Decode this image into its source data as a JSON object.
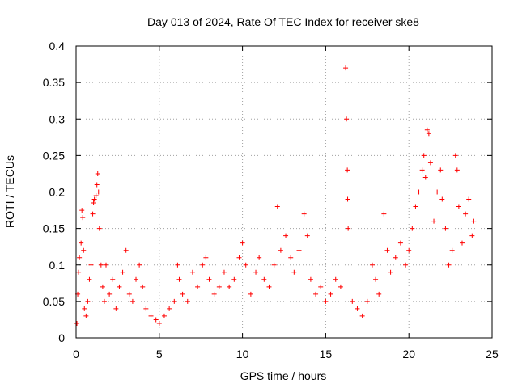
{
  "chart_data": {
    "type": "scatter",
    "title": "Day 013 of 2024, Rate Of TEC Index for receiver ske8",
    "xlabel": "GPS time / hours",
    "ylabel": "ROTI / TECUs",
    "xlim": [
      0,
      25
    ],
    "ylim": [
      0,
      0.4
    ],
    "x_ticks": [
      0,
      5,
      10,
      15,
      20,
      25
    ],
    "y_ticks": [
      0,
      0.05,
      0.1,
      0.15,
      0.2,
      0.25,
      0.3,
      0.35,
      0.4
    ],
    "x_tick_labels": [
      "0",
      "5",
      "10",
      "15",
      "20",
      "25"
    ],
    "y_tick_labels": [
      "0",
      "0.05",
      "0.1",
      "0.15",
      "0.2",
      "0.25",
      "0.3",
      "0.35",
      "0.4"
    ],
    "grid": true,
    "marker": "plus",
    "series_color": "#ff0000",
    "series": [
      {
        "name": "ROTI",
        "points": [
          [
            0.05,
            0.02
          ],
          [
            0.1,
            0.06
          ],
          [
            0.15,
            0.09
          ],
          [
            0.2,
            0.11
          ],
          [
            0.3,
            0.13
          ],
          [
            0.35,
            0.175
          ],
          [
            0.4,
            0.165
          ],
          [
            0.45,
            0.12
          ],
          [
            0.5,
            0.04
          ],
          [
            0.6,
            0.03
          ],
          [
            0.7,
            0.05
          ],
          [
            0.8,
            0.08
          ],
          [
            0.9,
            0.1
          ],
          [
            1.0,
            0.17
          ],
          [
            1.05,
            0.185
          ],
          [
            1.1,
            0.19
          ],
          [
            1.2,
            0.195
          ],
          [
            1.25,
            0.21
          ],
          [
            1.3,
            0.225
          ],
          [
            1.35,
            0.2
          ],
          [
            1.4,
            0.15
          ],
          [
            1.5,
            0.1
          ],
          [
            1.6,
            0.07
          ],
          [
            1.7,
            0.05
          ],
          [
            1.8,
            0.1
          ],
          [
            2.0,
            0.06
          ],
          [
            2.2,
            0.08
          ],
          [
            2.4,
            0.04
          ],
          [
            2.6,
            0.07
          ],
          [
            2.8,
            0.09
          ],
          [
            3.0,
            0.12
          ],
          [
            3.2,
            0.06
          ],
          [
            3.4,
            0.05
          ],
          [
            3.6,
            0.08
          ],
          [
            3.8,
            0.1
          ],
          [
            4.0,
            0.07
          ],
          [
            4.2,
            0.04
          ],
          [
            4.5,
            0.03
          ],
          [
            4.8,
            0.025
          ],
          [
            5.0,
            0.02
          ],
          [
            5.3,
            0.03
          ],
          [
            5.6,
            0.04
          ],
          [
            5.9,
            0.05
          ],
          [
            6.1,
            0.1
          ],
          [
            6.2,
            0.08
          ],
          [
            6.4,
            0.06
          ],
          [
            6.7,
            0.05
          ],
          [
            7.0,
            0.09
          ],
          [
            7.3,
            0.07
          ],
          [
            7.6,
            0.1
          ],
          [
            7.8,
            0.11
          ],
          [
            8.0,
            0.08
          ],
          [
            8.3,
            0.06
          ],
          [
            8.6,
            0.07
          ],
          [
            8.9,
            0.09
          ],
          [
            9.2,
            0.07
          ],
          [
            9.5,
            0.08
          ],
          [
            9.8,
            0.11
          ],
          [
            10.0,
            0.13
          ],
          [
            10.2,
            0.1
          ],
          [
            10.5,
            0.06
          ],
          [
            10.8,
            0.09
          ],
          [
            11.0,
            0.11
          ],
          [
            11.3,
            0.08
          ],
          [
            11.6,
            0.07
          ],
          [
            11.9,
            0.1
          ],
          [
            12.1,
            0.18
          ],
          [
            12.3,
            0.12
          ],
          [
            12.6,
            0.14
          ],
          [
            12.9,
            0.11
          ],
          [
            13.1,
            0.09
          ],
          [
            13.4,
            0.12
          ],
          [
            13.7,
            0.17
          ],
          [
            13.9,
            0.14
          ],
          [
            14.1,
            0.08
          ],
          [
            14.4,
            0.06
          ],
          [
            14.7,
            0.07
          ],
          [
            15.0,
            0.05
          ],
          [
            15.3,
            0.06
          ],
          [
            15.6,
            0.08
          ],
          [
            15.9,
            0.07
          ],
          [
            16.2,
            0.37
          ],
          [
            16.25,
            0.3
          ],
          [
            16.3,
            0.23
          ],
          [
            16.32,
            0.19
          ],
          [
            16.35,
            0.15
          ],
          [
            16.6,
            0.05
          ],
          [
            16.9,
            0.04
          ],
          [
            17.2,
            0.03
          ],
          [
            17.5,
            0.05
          ],
          [
            17.8,
            0.1
          ],
          [
            18.0,
            0.08
          ],
          [
            18.2,
            0.06
          ],
          [
            18.5,
            0.17
          ],
          [
            18.7,
            0.12
          ],
          [
            18.9,
            0.09
          ],
          [
            19.2,
            0.11
          ],
          [
            19.5,
            0.13
          ],
          [
            19.8,
            0.1
          ],
          [
            20.0,
            0.12
          ],
          [
            20.2,
            0.15
          ],
          [
            20.4,
            0.18
          ],
          [
            20.6,
            0.2
          ],
          [
            20.8,
            0.23
          ],
          [
            20.9,
            0.25
          ],
          [
            21.0,
            0.22
          ],
          [
            21.1,
            0.285
          ],
          [
            21.2,
            0.28
          ],
          [
            21.3,
            0.24
          ],
          [
            21.5,
            0.16
          ],
          [
            21.7,
            0.2
          ],
          [
            21.9,
            0.23
          ],
          [
            22.0,
            0.19
          ],
          [
            22.2,
            0.15
          ],
          [
            22.4,
            0.1
          ],
          [
            22.6,
            0.12
          ],
          [
            22.8,
            0.25
          ],
          [
            22.9,
            0.23
          ],
          [
            23.0,
            0.18
          ],
          [
            23.2,
            0.13
          ],
          [
            23.4,
            0.17
          ],
          [
            23.6,
            0.19
          ],
          [
            23.8,
            0.14
          ],
          [
            23.9,
            0.16
          ]
        ]
      }
    ]
  }
}
